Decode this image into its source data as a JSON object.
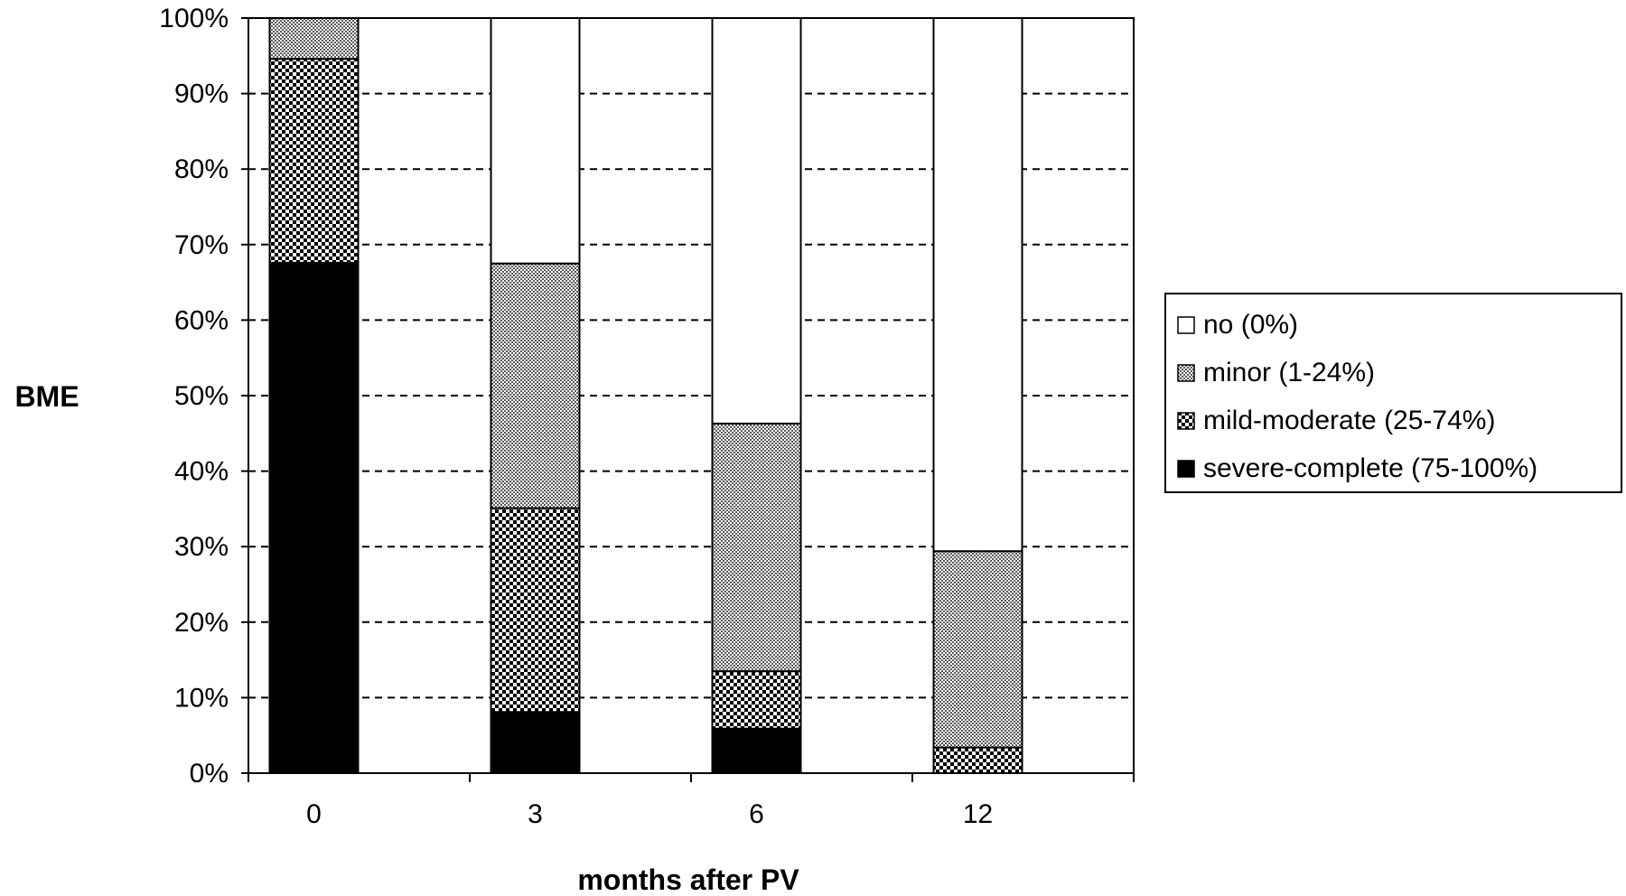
{
  "chart_data": {
    "type": "bar",
    "stacked": true,
    "categories": [
      "0",
      "3",
      "6",
      "12"
    ],
    "series": [
      {
        "name": "severe-complete (75-100%)",
        "values": [
          67.6,
          8.1,
          5.9,
          0
        ],
        "pattern": "solid-black"
      },
      {
        "name": "mild-moderate (25-74%)",
        "values": [
          27.0,
          27.0,
          7.6,
          3.4
        ],
        "pattern": "dots"
      },
      {
        "name": "minor (1-24%)",
        "values": [
          5.4,
          32.4,
          32.8,
          26.0
        ],
        "pattern": "dense-checker"
      },
      {
        "name": "no (0%)",
        "values": [
          0,
          32.5,
          53.7,
          70.6
        ],
        "pattern": "white"
      }
    ],
    "xlabel": "months after PV",
    "ylabel": "BME",
    "ylim": [
      0,
      100
    ],
    "yticks": [
      "0%",
      "10%",
      "20%",
      "30%",
      "40%",
      "50%",
      "60%",
      "70%",
      "80%",
      "90%",
      "100%"
    ],
    "grid": "horizontal-dashed",
    "legend_position": "right",
    "legend_order": [
      "no (0%)",
      "minor (1-24%)",
      "mild-moderate (25-74%)",
      "severe-complete (75-100%)"
    ]
  }
}
